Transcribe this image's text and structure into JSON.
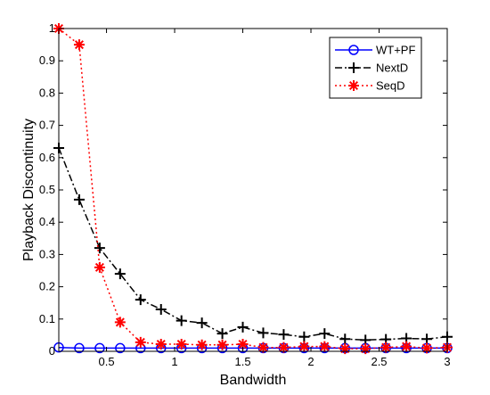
{
  "chart_data": {
    "type": "line",
    "title": "",
    "xlabel": "Bandwidth",
    "ylabel": "Playback Discontinuity",
    "xlim": [
      0.15,
      3
    ],
    "ylim": [
      0,
      1
    ],
    "xticks": [
      0.5,
      1,
      1.5,
      2,
      2.5,
      3
    ],
    "yticks": [
      0,
      0.1,
      0.2,
      0.3,
      0.4,
      0.5,
      0.6,
      0.7,
      0.8,
      0.9,
      1
    ],
    "grid": false,
    "legend_position": "top-right",
    "series": [
      {
        "name": "WT+PF",
        "color": "#0000ff",
        "line_style": "solid",
        "marker": "circle",
        "x": [
          0.15,
          0.3,
          0.45,
          0.6,
          0.75,
          0.9,
          1.05,
          1.2,
          1.35,
          1.5,
          1.65,
          1.8,
          1.95,
          2.1,
          2.25,
          2.4,
          2.55,
          2.7,
          2.85,
          3.0
        ],
        "y": [
          0.012,
          0.01,
          0.01,
          0.01,
          0.01,
          0.01,
          0.01,
          0.01,
          0.01,
          0.01,
          0.01,
          0.01,
          0.01,
          0.01,
          0.01,
          0.01,
          0.01,
          0.01,
          0.01,
          0.01
        ]
      },
      {
        "name": "NextD",
        "color": "#000000",
        "line_style": "dashdot",
        "marker": "plus",
        "x": [
          0.15,
          0.3,
          0.45,
          0.6,
          0.75,
          0.9,
          1.05,
          1.2,
          1.35,
          1.5,
          1.65,
          1.8,
          1.95,
          2.1,
          2.25,
          2.4,
          2.55,
          2.7,
          2.85,
          3.0
        ],
        "y": [
          0.63,
          0.47,
          0.32,
          0.24,
          0.16,
          0.13,
          0.095,
          0.088,
          0.055,
          0.075,
          0.057,
          0.052,
          0.045,
          0.055,
          0.038,
          0.035,
          0.037,
          0.04,
          0.038,
          0.045
        ]
      },
      {
        "name": "SeqD",
        "color": "#ff0000",
        "line_style": "dotted",
        "marker": "star",
        "x": [
          0.15,
          0.3,
          0.45,
          0.6,
          0.75,
          0.9,
          1.05,
          1.2,
          1.35,
          1.5,
          1.65,
          1.8,
          1.95,
          2.1,
          2.25,
          2.4,
          2.55,
          2.7,
          2.85,
          3.0
        ],
        "y": [
          1.0,
          0.95,
          0.26,
          0.09,
          0.028,
          0.022,
          0.022,
          0.02,
          0.02,
          0.022,
          0.012,
          0.012,
          0.015,
          0.015,
          0.008,
          0.008,
          0.012,
          0.015,
          0.01,
          0.012
        ]
      }
    ]
  }
}
